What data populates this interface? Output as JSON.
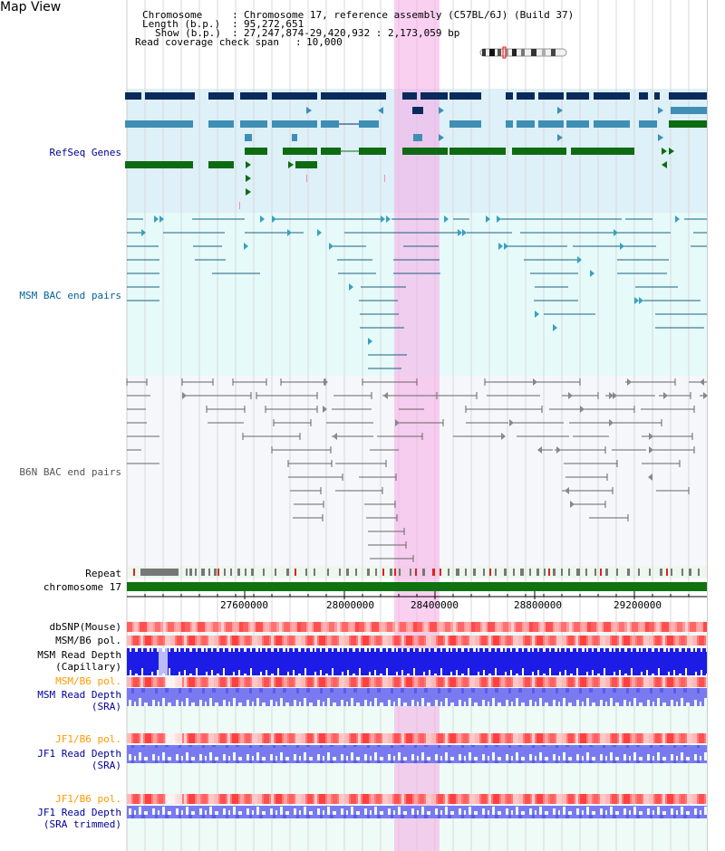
{
  "header": {
    "title": "Map View",
    "chromosome_label": "Chromosome",
    "chromosome_value": "Chromosome 17, reference assembly (C57BL/6J) (Build 37)",
    "length_label": "Length (b.p.)",
    "length_value": "95,272,651",
    "show_label": "Show (b.p.)",
    "show_value": "27,247,874-29,420,932 : 2,173,059 bp",
    "span_label": "Read coverage check span",
    "span_value": "10,000"
  },
  "tracks": {
    "refseq": "RefSeq Genes",
    "msm_bac": "MSM BAC end pairs",
    "b6n_bac": "B6N BAC end pairs",
    "repeat": "Repeat",
    "chromosome": "chromosome 17",
    "dbsnp": "dbSNP(Mouse)",
    "msm_b6_pol_1": "MSM/B6 pol.",
    "msm_depth_cap_1": "MSM Read Depth",
    "msm_depth_cap_2": "(Capillary)",
    "msm_b6_pol_2": "MSM/B6 pol.",
    "msm_depth_sra_1": "MSM Read Depth",
    "msm_depth_sra_2": "(SRA)",
    "jf1_b6_pol_1": "JF1/B6 pol.",
    "jf1_depth_sra_1": "JF1 Read Depth",
    "jf1_depth_sra_2": "(SRA)",
    "jf1_b6_pol_2": "JF1/B6 pol.",
    "jf1_depth_trim_1": "JF1 Read Depth",
    "jf1_depth_trim_2": "(SRA trimmed)"
  },
  "axis": {
    "ticks": [
      "27600000",
      "28000000",
      "28400000",
      "28800000",
      "29200000"
    ]
  },
  "colors": {
    "highlight": "#f5aae6",
    "refseq_bg": "#def0f8",
    "msm_bg": "#e6fafa",
    "b6n_bg": "#f5f7fa",
    "gene_dark": "#0a2a5c",
    "gene_mid": "#3f8fb5",
    "gene_green": "#0e6b12",
    "chrom_bar": "#0f730f",
    "snp_red": "#ff4040",
    "depth_blue": "#2020dd",
    "depth_light": "#7777ee"
  }
}
